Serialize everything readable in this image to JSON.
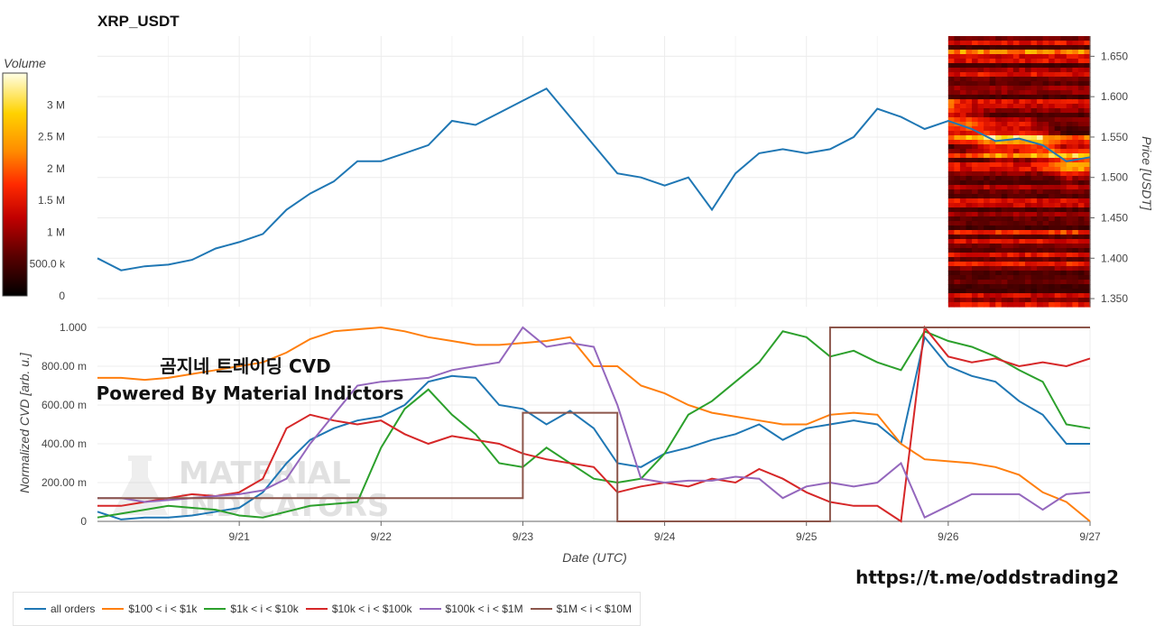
{
  "chart_data": [
    {
      "type": "heatmap",
      "title": "XRP_USDT",
      "colorbar": {
        "title": "Volume",
        "ticks": [
          "3 M",
          "2.5 M",
          "2 M",
          "1.5 M",
          "1 M",
          "500.0 k",
          "0"
        ],
        "range": [
          0,
          3500000
        ]
      },
      "ylabel": "Price [USDT]",
      "ylim": [
        1.34,
        1.675
      ],
      "yticks": [
        "1.650",
        "1.600",
        "1.550",
        "1.500",
        "1.450",
        "1.400",
        "1.350"
      ],
      "xlim": [
        "2024-09-20T00:00",
        "2024-09-27T00:00"
      ],
      "heatmap_start": "2024-09-26T00:00",
      "grid": true,
      "series": [
        {
          "name": "price",
          "color": "#1f77b4",
          "x": [
            "2024-09-20T00:00",
            "2024-09-20T04:00",
            "2024-09-20T08:00",
            "2024-09-20T12:00",
            "2024-09-20T16:00",
            "2024-09-20T20:00",
            "2024-09-21T00:00",
            "2024-09-21T04:00",
            "2024-09-21T08:00",
            "2024-09-21T12:00",
            "2024-09-21T16:00",
            "2024-09-21T20:00",
            "2024-09-22T00:00",
            "2024-09-22T04:00",
            "2024-09-22T08:00",
            "2024-09-22T12:00",
            "2024-09-22T16:00",
            "2024-09-22T20:00",
            "2024-09-23T00:00",
            "2024-09-23T04:00",
            "2024-09-23T08:00",
            "2024-09-23T12:00",
            "2024-09-23T16:00",
            "2024-09-23T20:00",
            "2024-09-24T00:00",
            "2024-09-24T04:00",
            "2024-09-24T08:00",
            "2024-09-24T12:00",
            "2024-09-24T16:00",
            "2024-09-24T20:00",
            "2024-09-25T00:00",
            "2024-09-25T04:00",
            "2024-09-25T08:00",
            "2024-09-25T12:00",
            "2024-09-25T16:00",
            "2024-09-25T20:00",
            "2024-09-26T00:00",
            "2024-09-26T04:00",
            "2024-09-26T08:00",
            "2024-09-26T12:00",
            "2024-09-26T16:00",
            "2024-09-26T20:00",
            "2024-09-27T00:00"
          ],
          "y": [
            1.4,
            1.385,
            1.39,
            1.392,
            1.398,
            1.412,
            1.42,
            1.43,
            1.46,
            1.48,
            1.495,
            1.52,
            1.52,
            1.53,
            1.54,
            1.57,
            1.565,
            1.58,
            1.595,
            1.61,
            1.575,
            1.54,
            1.505,
            1.5,
            1.49,
            1.5,
            1.46,
            1.505,
            1.53,
            1.535,
            1.53,
            1.535,
            1.55,
            1.585,
            1.575,
            1.56,
            1.57,
            1.56,
            1.545,
            1.548,
            1.54,
            1.52,
            1.525
          ]
        }
      ]
    },
    {
      "type": "line",
      "ylabel": "Normalized CVD [arb. u.]",
      "xlabel": "Date (UTC)",
      "ylim": [
        0,
        1
      ],
      "yticks": [
        "1.000",
        "800.00 m",
        "600.00 m",
        "400.00 m",
        "200.00 m",
        "0"
      ],
      "xlim": [
        "2024-09-20T00:00",
        "2024-09-27T00:00"
      ],
      "xticks": [
        "9/21",
        "9/22",
        "9/23",
        "9/24",
        "9/25",
        "9/26",
        "9/27"
      ],
      "xtick_dates": [
        "2024-09-21",
        "2024-09-22",
        "2024-09-23",
        "2024-09-24",
        "2024-09-25",
        "2024-09-26",
        "2024-09-27"
      ],
      "grid": true,
      "legend_position": "bottom-left",
      "x": [
        "2024-09-20T00:00",
        "2024-09-20T04:00",
        "2024-09-20T08:00",
        "2024-09-20T12:00",
        "2024-09-20T16:00",
        "2024-09-20T20:00",
        "2024-09-21T00:00",
        "2024-09-21T04:00",
        "2024-09-21T08:00",
        "2024-09-21T12:00",
        "2024-09-21T16:00",
        "2024-09-21T20:00",
        "2024-09-22T00:00",
        "2024-09-22T04:00",
        "2024-09-22T08:00",
        "2024-09-22T12:00",
        "2024-09-22T16:00",
        "2024-09-22T20:00",
        "2024-09-23T00:00",
        "2024-09-23T04:00",
        "2024-09-23T08:00",
        "2024-09-23T12:00",
        "2024-09-23T16:00",
        "2024-09-23T20:00",
        "2024-09-24T00:00",
        "2024-09-24T04:00",
        "2024-09-24T08:00",
        "2024-09-24T12:00",
        "2024-09-24T16:00",
        "2024-09-24T20:00",
        "2024-09-25T00:00",
        "2024-09-25T04:00",
        "2024-09-25T08:00",
        "2024-09-25T12:00",
        "2024-09-25T16:00",
        "2024-09-25T20:00",
        "2024-09-26T00:00",
        "2024-09-26T04:00",
        "2024-09-26T08:00",
        "2024-09-26T12:00",
        "2024-09-26T16:00",
        "2024-09-26T20:00",
        "2024-09-27T00:00"
      ],
      "series": [
        {
          "name": "all orders",
          "color": "#1f77b4",
          "values": [
            0.05,
            0.01,
            0.02,
            0.02,
            0.03,
            0.05,
            0.07,
            0.15,
            0.3,
            0.42,
            0.48,
            0.52,
            0.54,
            0.6,
            0.72,
            0.75,
            0.74,
            0.6,
            0.58,
            0.5,
            0.57,
            0.48,
            0.3,
            0.28,
            0.35,
            0.38,
            0.42,
            0.45,
            0.5,
            0.42,
            0.48,
            0.5,
            0.52,
            0.5,
            0.4,
            0.95,
            0.8,
            0.75,
            0.72,
            0.62,
            0.55,
            0.4,
            0.4
          ]
        },
        {
          "name": "$100 < i < $1k",
          "color": "#ff7f0e",
          "values": [
            0.74,
            0.74,
            0.73,
            0.74,
            0.76,
            0.78,
            0.8,
            0.82,
            0.87,
            0.94,
            0.98,
            0.99,
            1.0,
            0.98,
            0.95,
            0.93,
            0.91,
            0.91,
            0.92,
            0.93,
            0.95,
            0.8,
            0.8,
            0.7,
            0.66,
            0.6,
            0.56,
            0.54,
            0.52,
            0.5,
            0.5,
            0.55,
            0.56,
            0.55,
            0.4,
            0.32,
            0.31,
            0.3,
            0.28,
            0.24,
            0.15,
            0.1,
            0.0
          ]
        },
        {
          "name": "$1k < i < $10k",
          "color": "#2ca02c",
          "values": [
            0.02,
            0.04,
            0.06,
            0.08,
            0.07,
            0.06,
            0.03,
            0.02,
            0.05,
            0.08,
            0.09,
            0.1,
            0.38,
            0.58,
            0.68,
            0.55,
            0.45,
            0.3,
            0.28,
            0.38,
            0.3,
            0.22,
            0.2,
            0.22,
            0.35,
            0.55,
            0.62,
            0.72,
            0.82,
            0.98,
            0.95,
            0.85,
            0.88,
            0.82,
            0.78,
            0.98,
            0.93,
            0.9,
            0.85,
            0.78,
            0.72,
            0.5,
            0.48
          ]
        },
        {
          "name": "$10k < i < $100k",
          "color": "#d62728",
          "values": [
            0.08,
            0.08,
            0.1,
            0.12,
            0.14,
            0.13,
            0.15,
            0.22,
            0.48,
            0.55,
            0.52,
            0.5,
            0.52,
            0.45,
            0.4,
            0.44,
            0.42,
            0.4,
            0.35,
            0.32,
            0.3,
            0.28,
            0.15,
            0.18,
            0.2,
            0.18,
            0.22,
            0.2,
            0.27,
            0.22,
            0.15,
            0.1,
            0.08,
            0.08,
            0.0,
            1.0,
            0.85,
            0.82,
            0.84,
            0.8,
            0.82,
            0.8,
            0.84
          ]
        },
        {
          "name": "$100k < i < $1M",
          "color": "#9467bd",
          "values": [
            0.12,
            0.12,
            0.1,
            0.11,
            0.12,
            0.13,
            0.14,
            0.16,
            0.22,
            0.4,
            0.55,
            0.7,
            0.72,
            0.73,
            0.74,
            0.78,
            0.8,
            0.82,
            1.0,
            0.9,
            0.92,
            0.9,
            0.6,
            0.22,
            0.2,
            0.21,
            0.21,
            0.23,
            0.22,
            0.12,
            0.18,
            0.2,
            0.18,
            0.2,
            0.3,
            0.02,
            0.08,
            0.14,
            0.14,
            0.14,
            0.06,
            0.14,
            0.15
          ]
        },
        {
          "name": "$1M < i < $10M",
          "color": "#8c564b",
          "values": [
            0.12,
            0.12,
            0.12,
            0.12,
            0.12,
            0.12,
            0.12,
            0.12,
            0.12,
            0.12,
            0.12,
            0.12,
            0.12,
            0.12,
            0.12,
            0.12,
            0.12,
            0.12,
            0.56,
            0.56,
            0.56,
            0.56,
            0.0,
            0.0,
            0.0,
            0.0,
            0.0,
            0.0,
            0.0,
            0.0,
            0.0,
            1.0,
            1.0,
            1.0,
            1.0,
            1.0,
            1.0,
            1.0,
            1.0,
            1.0,
            1.0,
            1.0,
            1.0
          ]
        }
      ]
    }
  ],
  "annotations": {
    "line1": "곰지네 트레이딩 CVD",
    "line2": "Powered By Material Indictors",
    "watermark_line1": "MATERIAL",
    "watermark_line2": "INDICATORS",
    "url": "https://t.me/oddstrading2"
  }
}
